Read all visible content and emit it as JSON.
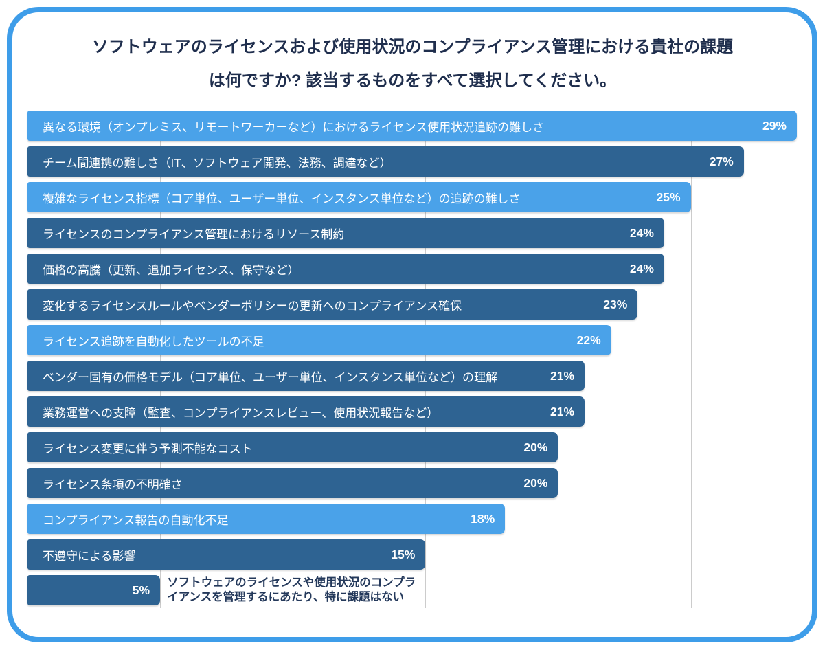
{
  "frame": {
    "border_color": "#3e9de9"
  },
  "title": {
    "line1": "ソフトウェアのライセンスおよび使用状況のコンプライアンス管理における貴社の課題",
    "line2": "は何ですか? 該当するものをすべて選択してください。"
  },
  "chart_data": {
    "type": "bar",
    "orientation": "horizontal",
    "title": "ソフトウェアのライセンスおよび使用状況のコンプライアンス管理における貴社の課題は何ですか? 該当するものをすべて選択してください。",
    "unit": "%",
    "xlim": [
      0,
      29
    ],
    "xmax": 29,
    "grid": true,
    "gridlines_percent": [
      5,
      10,
      15,
      20,
      25
    ],
    "legend": false,
    "colors": {
      "light": "#4aa2e9",
      "dark": "#2e6392"
    },
    "categories": [
      "異なる環境（オンプレミス、リモートワーカーなど）におけるライセンス使用状況追跡の難しさ",
      "チーム間連携の難しさ（IT、ソフトウェア開発、法務、調達など）",
      "複雑なライセンス指標（コア単位、ユーザー単位、インスタンス単位など）の追跡の難しさ",
      "ライセンスのコンプライアンス管理におけるリソース制約",
      "価格の高騰（更新、追加ライセンス、保守など）",
      "変化するライセンスルールやベンダーポリシーの更新へのコンプライアンス確保",
      "ライセンス追跡を自動化したツールの不足",
      "ベンダー固有の価格モデル（コア単位、ユーザー単位、インスタンス単位など）の理解",
      "業務運営への支障（監査、コンプライアンスレビュー、使用状況報告など）",
      "ライセンス変更に伴う予測不能なコスト",
      "ライセンス条項の不明確さ",
      "コンプライアンス報告の自動化不足",
      "不遵守による影響",
      "ソフトウェアのライセンスや使用状況のコンプライアンスを管理するにあたり、特に課題はない"
    ],
    "values": [
      29,
      27,
      25,
      24,
      24,
      23,
      22,
      21,
      21,
      20,
      20,
      18,
      15,
      5
    ],
    "rows": [
      {
        "label": "異なる環境（オンプレミス、リモートワーカーなど）におけるライセンス使用状況追跡の難しさ",
        "value": 29,
        "style": "light",
        "label_outside": false
      },
      {
        "label": "チーム間連携の難しさ（IT、ソフトウェア開発、法務、調達など）",
        "value": 27,
        "style": "dark",
        "label_outside": false
      },
      {
        "label": "複雑なライセンス指標（コア単位、ユーザー単位、インスタンス単位など）の追跡の難しさ",
        "value": 25,
        "style": "light",
        "label_outside": false
      },
      {
        "label": "ライセンスのコンプライアンス管理におけるリソース制約",
        "value": 24,
        "style": "dark",
        "label_outside": false
      },
      {
        "label": "価格の高騰（更新、追加ライセンス、保守など）",
        "value": 24,
        "style": "dark",
        "label_outside": false
      },
      {
        "label": "変化するライセンスルールやベンダーポリシーの更新へのコンプライアンス確保",
        "value": 23,
        "style": "dark",
        "label_outside": false
      },
      {
        "label": "ライセンス追跡を自動化したツールの不足",
        "value": 22,
        "style": "light",
        "label_outside": false
      },
      {
        "label": "ベンダー固有の価格モデル（コア単位、ユーザー単位、インスタンス単位など）の理解",
        "value": 21,
        "style": "dark",
        "label_outside": false
      },
      {
        "label": "業務運営への支障（監査、コンプライアンスレビュー、使用状況報告など）",
        "value": 21,
        "style": "dark",
        "label_outside": false
      },
      {
        "label": "ライセンス変更に伴う予測不能なコスト",
        "value": 20,
        "style": "dark",
        "label_outside": false
      },
      {
        "label": "ライセンス条項の不明確さ",
        "value": 20,
        "style": "dark",
        "label_outside": false
      },
      {
        "label": "コンプライアンス報告の自動化不足",
        "value": 18,
        "style": "light",
        "label_outside": false
      },
      {
        "label": "不遵守による影響",
        "value": 15,
        "style": "dark",
        "label_outside": false
      },
      {
        "label": "ソフトウェアのライセンスや使用状況のコンプラ\nイアンスを管理するにあたり、特に課題はない",
        "value": 5,
        "style": "dark",
        "label_outside": true
      }
    ]
  }
}
